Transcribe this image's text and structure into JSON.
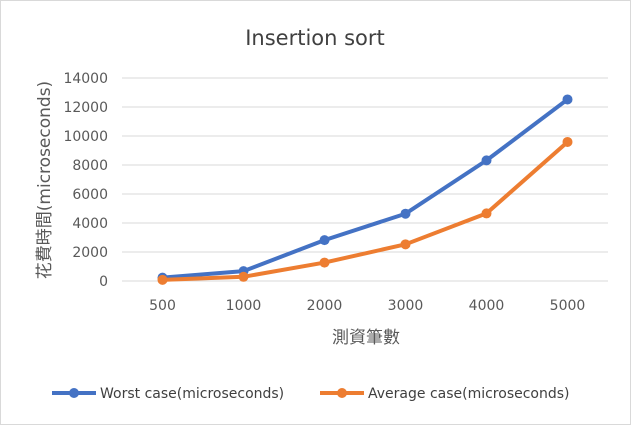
{
  "chart_data": {
    "type": "line",
    "title": "Insertion sort",
    "xlabel": "測資筆數",
    "ylabel": "花費時間(microseconds)",
    "categories": [
      "500",
      "1000",
      "2000",
      "3000",
      "4000",
      "5000"
    ],
    "ylim": [
      0,
      14000
    ],
    "yticks": [
      "0",
      "2000",
      "4000",
      "6000",
      "8000",
      "10000",
      "12000",
      "14000"
    ],
    "grid": true,
    "legend_position": "bottom",
    "series": [
      {
        "name": "Worst case(microseconds)",
        "color": "#4472c4",
        "values": [
          230,
          680,
          2820,
          4640,
          8320,
          12520
        ]
      },
      {
        "name": "Average case(microseconds)",
        "color": "#ed7d31",
        "values": [
          80,
          290,
          1270,
          2530,
          4660,
          9590
        ]
      }
    ]
  }
}
